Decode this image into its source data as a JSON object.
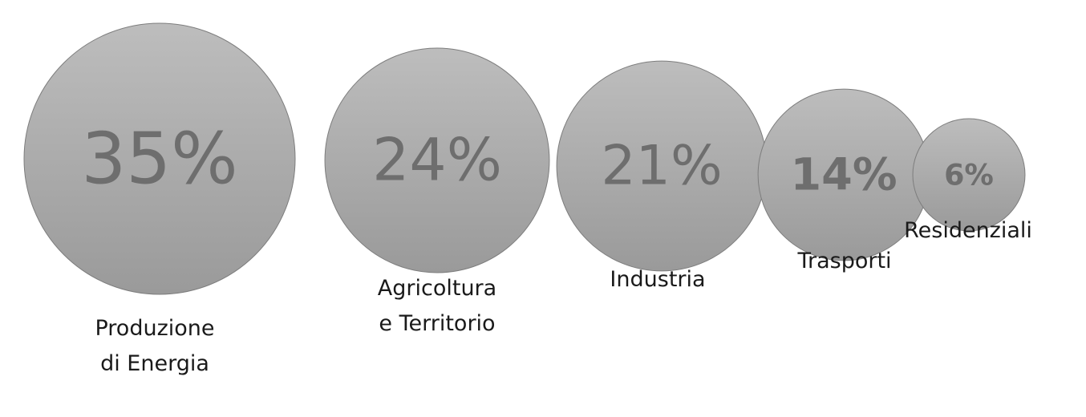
{
  "chart_data": {
    "type": "bubble",
    "categories": [
      "Produzione di Energia",
      "Agricoltura e Territorio",
      "Industria",
      "Trasporti",
      "Residenziali"
    ],
    "values": [
      35,
      24,
      21,
      14,
      6
    ],
    "value_labels": [
      "35%",
      "24%",
      "21%",
      "14%",
      "6%"
    ],
    "label_lines": [
      [
        "Produzione",
        "di Energia"
      ],
      [
        "Agricoltura",
        "e Territorio"
      ],
      [
        "Industria"
      ],
      [
        "Trasporti"
      ],
      [
        "Residenziali"
      ]
    ],
    "unit": "%",
    "colors": {
      "bubble_light": "#bdbdbd",
      "bubble_dark": "#9a9a9a",
      "bubble_stroke": "#7d7d7d",
      "value_text": "#6e6e6e",
      "label_text": "#1a1a1a"
    }
  }
}
